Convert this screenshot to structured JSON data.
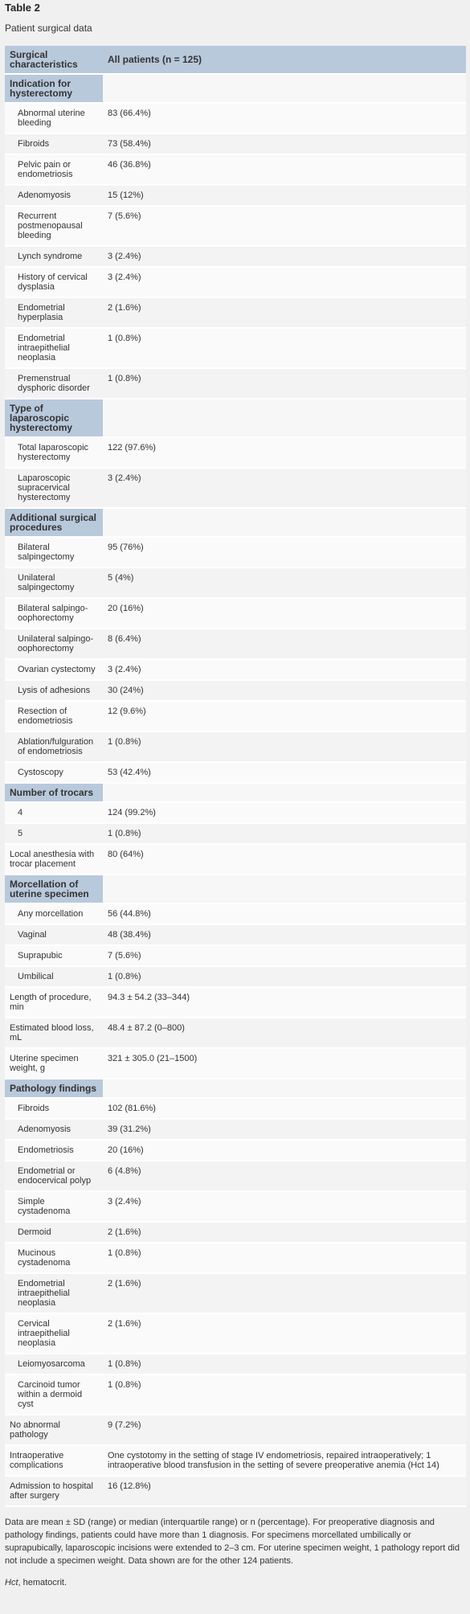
{
  "title": "Table 2",
  "caption": "Patient surgical data",
  "columns": [
    "Surgical characteristics",
    "All patients (n = 125)"
  ],
  "rows": [
    {
      "type": "section",
      "label": "Indication for hysterectomy"
    },
    {
      "type": "item",
      "indent": true,
      "label": "Abnormal uterine bleeding",
      "value": "83 (66.4%)"
    },
    {
      "type": "item",
      "indent": true,
      "label": "Fibroids",
      "value": "73 (58.4%)"
    },
    {
      "type": "item",
      "indent": true,
      "label": "Pelvic pain or endometriosis",
      "value": "46 (36.8%)"
    },
    {
      "type": "item",
      "indent": true,
      "label": "Adenomyosis",
      "value": "15 (12%)"
    },
    {
      "type": "item",
      "indent": true,
      "label": "Recurrent postmenopausal bleeding",
      "value": "7 (5.6%)"
    },
    {
      "type": "item",
      "indent": true,
      "label": "Lynch syndrome",
      "value": "3 (2.4%)"
    },
    {
      "type": "item",
      "indent": true,
      "label": "History of cervical dysplasia",
      "value": "3 (2.4%)"
    },
    {
      "type": "item",
      "indent": true,
      "label": "Endometrial hyperplasia",
      "value": "2 (1.6%)"
    },
    {
      "type": "item",
      "indent": true,
      "label": "Endometrial intraepithelial neoplasia",
      "value": "1 (0.8%)"
    },
    {
      "type": "item",
      "indent": true,
      "label": "Premenstrual dysphoric disorder",
      "value": "1 (0.8%)"
    },
    {
      "type": "section",
      "label": "Type of laparoscopic hysterectomy"
    },
    {
      "type": "item",
      "indent": true,
      "label": "Total laparoscopic hysterectomy",
      "value": "122 (97.6%)"
    },
    {
      "type": "item",
      "indent": true,
      "label": "Laparoscopic supracervical hysterectomy",
      "value": "3 (2.4%)"
    },
    {
      "type": "section",
      "label": "Additional surgical procedures"
    },
    {
      "type": "item",
      "indent": true,
      "label": "Bilateral salpingectomy",
      "value": "95 (76%)"
    },
    {
      "type": "item",
      "indent": true,
      "label": "Unilateral salpingectomy",
      "value": "5 (4%)"
    },
    {
      "type": "item",
      "indent": true,
      "label": "Bilateral salpingo-oophorectomy",
      "value": "20 (16%)"
    },
    {
      "type": "item",
      "indent": true,
      "label": "Unilateral salpingo-oophorectomy",
      "value": "8 (6.4%)"
    },
    {
      "type": "item",
      "indent": true,
      "label": "Ovarian cystectomy",
      "value": "3 (2.4%)"
    },
    {
      "type": "item",
      "indent": true,
      "label": "Lysis of adhesions",
      "value": "30 (24%)"
    },
    {
      "type": "item",
      "indent": true,
      "label": "Resection of endometriosis",
      "value": "12 (9.6%)"
    },
    {
      "type": "item",
      "indent": true,
      "label": "Ablation/fulguration of endometriosis",
      "value": "1 (0.8%)"
    },
    {
      "type": "item",
      "indent": true,
      "label": "Cystoscopy",
      "value": "53 (42.4%)"
    },
    {
      "type": "section",
      "label": "Number of trocars"
    },
    {
      "type": "item",
      "indent": true,
      "label": "4",
      "value": "124 (99.2%)"
    },
    {
      "type": "item",
      "indent": true,
      "label": "5",
      "value": "1 (0.8%)"
    },
    {
      "type": "item",
      "indent": false,
      "label": "Local anesthesia with trocar placement",
      "value": "80 (64%)"
    },
    {
      "type": "section",
      "label": "Morcellation of uterine specimen"
    },
    {
      "type": "item",
      "indent": true,
      "label": "Any morcellation",
      "value": "56 (44.8%)"
    },
    {
      "type": "item",
      "indent": true,
      "label": "Vaginal",
      "value": "48 (38.4%)"
    },
    {
      "type": "item",
      "indent": true,
      "label": "Suprapubic",
      "value": "7 (5.6%)"
    },
    {
      "type": "item",
      "indent": true,
      "label": "Umbilical",
      "value": "1 (0.8%)"
    },
    {
      "type": "item",
      "indent": false,
      "label": "Length of procedure, min",
      "value": "94.3 ± 54.2 (33–344)"
    },
    {
      "type": "item",
      "indent": false,
      "label": "Estimated blood loss, mL",
      "value": "48.4 ± 87.2 (0–800)"
    },
    {
      "type": "item",
      "indent": false,
      "label": "Uterine specimen weight, g",
      "value": "321 ± 305.0 (21–1500)"
    },
    {
      "type": "section",
      "label": "Pathology findings"
    },
    {
      "type": "item",
      "indent": true,
      "label": "Fibroids",
      "value": "102 (81.6%)"
    },
    {
      "type": "item",
      "indent": true,
      "label": "Adenomyosis",
      "value": "39 (31.2%)"
    },
    {
      "type": "item",
      "indent": true,
      "label": "Endometriosis",
      "value": "20 (16%)"
    },
    {
      "type": "item",
      "indent": true,
      "label": "Endometrial or endocervical polyp",
      "value": "6 (4.8%)"
    },
    {
      "type": "item",
      "indent": true,
      "label": "Simple cystadenoma",
      "value": "3 (2.4%)"
    },
    {
      "type": "item",
      "indent": true,
      "label": "Dermoid",
      "value": "2 (1.6%)"
    },
    {
      "type": "item",
      "indent": true,
      "label": "Mucinous cystadenoma",
      "value": "1 (0.8%)"
    },
    {
      "type": "item",
      "indent": true,
      "label": "Endometrial intraepithelial neoplasia",
      "value": "2 (1.6%)"
    },
    {
      "type": "item",
      "indent": true,
      "label": "Cervical intraepithelial neoplasia",
      "value": "2 (1.6%)"
    },
    {
      "type": "item",
      "indent": true,
      "label": "Leiomyosarcoma",
      "value": "1 (0.8%)"
    },
    {
      "type": "item",
      "indent": true,
      "label": "Carcinoid tumor within a dermoid cyst",
      "value": "1 (0.8%)"
    },
    {
      "type": "item",
      "indent": false,
      "label": "No abnormal pathology",
      "value": "9 (7.2%)"
    },
    {
      "type": "item",
      "indent": false,
      "label": "Intraoperative complications",
      "value": "One cystotomy in the setting of stage IV endometriosis, repaired intraoperatively; 1 intraoperative blood transfusion in the setting of severe preoperative anemia (Hct 14)"
    },
    {
      "type": "item",
      "indent": false,
      "label": "Admission to hospital after surgery",
      "value": "16 (12.8%)"
    }
  ],
  "footnote": "Data are mean ± SD (range) or median (interquartile range) or n (percentage). For preoperative diagnosis and pathology findings, patients could have more than 1 diagnosis. For specimens morcellated umbilically or suprapubically, laparoscopic incisions were extended to 2–3 cm. For uterine specimen weight, 1 pathology report did not include a specimen weight. Data shown are for the other 124 patients.",
  "abbreviation": {
    "term": "Hct",
    "definition": ", hematocrit."
  },
  "colors": {
    "header_bg": "#b9c9dc",
    "row_odd": "#fafafa",
    "row_even": "#f3f3f3",
    "page_bg": "#f0f0f0"
  }
}
